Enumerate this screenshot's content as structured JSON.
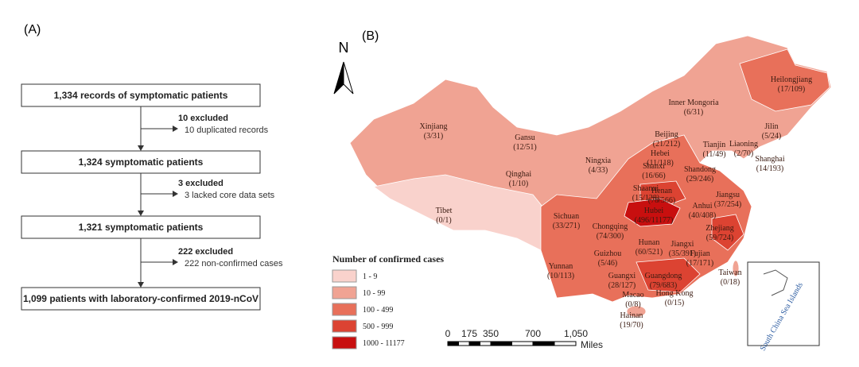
{
  "panel_a": "(A)",
  "panel_b": "(B)",
  "flowchart": {
    "boxes": [
      "1,334 records of symptomatic patients",
      "1,324 symptomatic patients",
      "1,321 symptomatic patients",
      "1,099 patients with laboratory-confirmed 2019-nCoV"
    ],
    "exclusions": [
      {
        "title": "10 excluded",
        "detail": "10 duplicated records"
      },
      {
        "title": "3 excluded",
        "detail": "3 lacked core data sets"
      },
      {
        "title": "222 excluded",
        "detail": "222 non-confirmed cases"
      }
    ]
  },
  "map": {
    "north": "N",
    "provinces": [
      {
        "name": "Heilongjiang",
        "cases": "(17/109)"
      },
      {
        "name": "Inner Mongoria",
        "cases": "(6/31)"
      },
      {
        "name": "Jilin",
        "cases": "(5/24)"
      },
      {
        "name": "Liaoning",
        "cases": "(2/70)"
      },
      {
        "name": "Beijing",
        "cases": "(21/212)"
      },
      {
        "name": "Tianjin",
        "cases": "(11/49)"
      },
      {
        "name": "Hebei",
        "cases": "(11/118)"
      },
      {
        "name": "Xinjiang",
        "cases": "(3/31)"
      },
      {
        "name": "Gansu",
        "cases": "(12/51)"
      },
      {
        "name": "Ningxia",
        "cases": "(4/33)"
      },
      {
        "name": "Shanxi",
        "cases": "(16/66)"
      },
      {
        "name": "Shandong",
        "cases": "(29/246)"
      },
      {
        "name": "Shanghai",
        "cases": "(14/193)"
      },
      {
        "name": "Qinghai",
        "cases": "(1/10)"
      },
      {
        "name": "Shaanxi",
        "cases": "(15/128)"
      },
      {
        "name": "Henan",
        "cases": "(78/566)"
      },
      {
        "name": "Jiangsu",
        "cases": "(37/254)"
      },
      {
        "name": "Tibet",
        "cases": "(0/1)"
      },
      {
        "name": "Hubei",
        "cases": "(496/11177)"
      },
      {
        "name": "Anhui",
        "cases": "(40/408)"
      },
      {
        "name": "Sichuan",
        "cases": "(33/271)"
      },
      {
        "name": "Chongqing",
        "cases": "(74/300)"
      },
      {
        "name": "Zhejiang",
        "cases": "(59/724)"
      },
      {
        "name": "Hunan",
        "cases": "(60/521)"
      },
      {
        "name": "Jiangxi",
        "cases": "(35/391)"
      },
      {
        "name": "Yunnan",
        "cases": "(10/113)"
      },
      {
        "name": "Guizhou",
        "cases": "(5/46)"
      },
      {
        "name": "Fujian",
        "cases": "(17/171)"
      },
      {
        "name": "Guangxi",
        "cases": "(28/127)"
      },
      {
        "name": "Guangdong",
        "cases": "(79/683)"
      },
      {
        "name": "Taiwan",
        "cases": "(0/18)"
      },
      {
        "name": "Macao",
        "cases": "(0/8)"
      },
      {
        "name": "Hong Kong",
        "cases": "(0/15)"
      },
      {
        "name": "Hainan",
        "cases": "(19/70)"
      }
    ],
    "legend": {
      "title": "Number of confirmed cases",
      "items": [
        {
          "label": "1 - 9",
          "color": "#f9d2cc"
        },
        {
          "label": "10 - 99",
          "color": "#f0a393"
        },
        {
          "label": "100 - 499",
          "color": "#e8705a"
        },
        {
          "label": "500 - 999",
          "color": "#dc4332"
        },
        {
          "label": "1000 - 11177",
          "color": "#c80f0f"
        }
      ]
    },
    "scale": {
      "labels": [
        "0",
        "175",
        "350",
        "700",
        "1,050"
      ],
      "unit": "Miles"
    },
    "inset_label": "South China Sea Islands"
  }
}
